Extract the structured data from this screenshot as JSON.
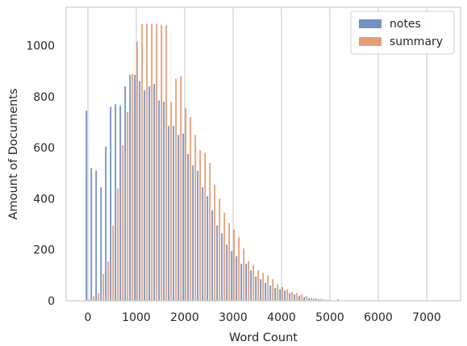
{
  "chart_data": {
    "type": "bar",
    "xlabel": "Word Count",
    "ylabel": "Amount of Documents",
    "xlim": [
      -450,
      7700
    ],
    "ylim": [
      0,
      1150
    ],
    "xticks": [
      0,
      1000,
      2000,
      3000,
      4000,
      5000,
      6000,
      7000
    ],
    "yticks": [
      0,
      200,
      400,
      600,
      800,
      1000
    ],
    "grid": "x-only",
    "legend_position": "top-right",
    "bin_width": 100,
    "series": [
      {
        "name": "notes",
        "color": "#4c72b0",
        "x": [
          0,
          100,
          200,
          300,
          400,
          500,
          600,
          700,
          800,
          900,
          1000,
          1100,
          1200,
          1300,
          1400,
          1500,
          1600,
          1700,
          1800,
          1900,
          2000,
          2100,
          2200,
          2300,
          2400,
          2500,
          2600,
          2700,
          2800,
          2900,
          3000,
          3100,
          3200,
          3300,
          3400,
          3500,
          3600,
          3700,
          3800,
          3900,
          4000,
          4100,
          4200,
          4300,
          4400,
          4500,
          4600,
          4700,
          4800,
          4900,
          5000,
          5200,
          5600,
          6000,
          6200,
          6600,
          7200
        ],
        "values": [
          745,
          520,
          510,
          445,
          605,
          760,
          770,
          765,
          840,
          885,
          885,
          860,
          825,
          840,
          850,
          785,
          780,
          685,
          685,
          650,
          655,
          575,
          530,
          510,
          445,
          410,
          355,
          295,
          265,
          220,
          195,
          175,
          145,
          145,
          120,
          95,
          85,
          70,
          60,
          50,
          45,
          40,
          30,
          25,
          20,
          15,
          10,
          8,
          6,
          5,
          3,
          6,
          2,
          2,
          2,
          2,
          2
        ]
      },
      {
        "name": "summary",
        "color": "#dd8452",
        "x": [
          0,
          100,
          200,
          300,
          400,
          500,
          600,
          700,
          800,
          900,
          1000,
          1100,
          1200,
          1300,
          1400,
          1500,
          1600,
          1700,
          1800,
          1900,
          2000,
          2100,
          2200,
          2300,
          2400,
          2500,
          2600,
          2700,
          2800,
          2900,
          3000,
          3100,
          3200,
          3300,
          3400,
          3500,
          3600,
          3700,
          3800,
          3900,
          4000,
          4100,
          4200,
          4300,
          4400,
          4500,
          4600,
          4700,
          4800,
          4900,
          5000
        ],
        "values": [
          5,
          20,
          30,
          105,
          155,
          295,
          440,
          610,
          740,
          890,
          1015,
          1085,
          1085,
          1085,
          1085,
          1080,
          1080,
          780,
          870,
          880,
          755,
          720,
          650,
          590,
          580,
          540,
          455,
          400,
          345,
          305,
          280,
          250,
          205,
          155,
          140,
          120,
          110,
          100,
          85,
          65,
          55,
          45,
          35,
          30,
          25,
          18,
          12,
          10,
          8,
          5,
          3
        ]
      }
    ]
  }
}
